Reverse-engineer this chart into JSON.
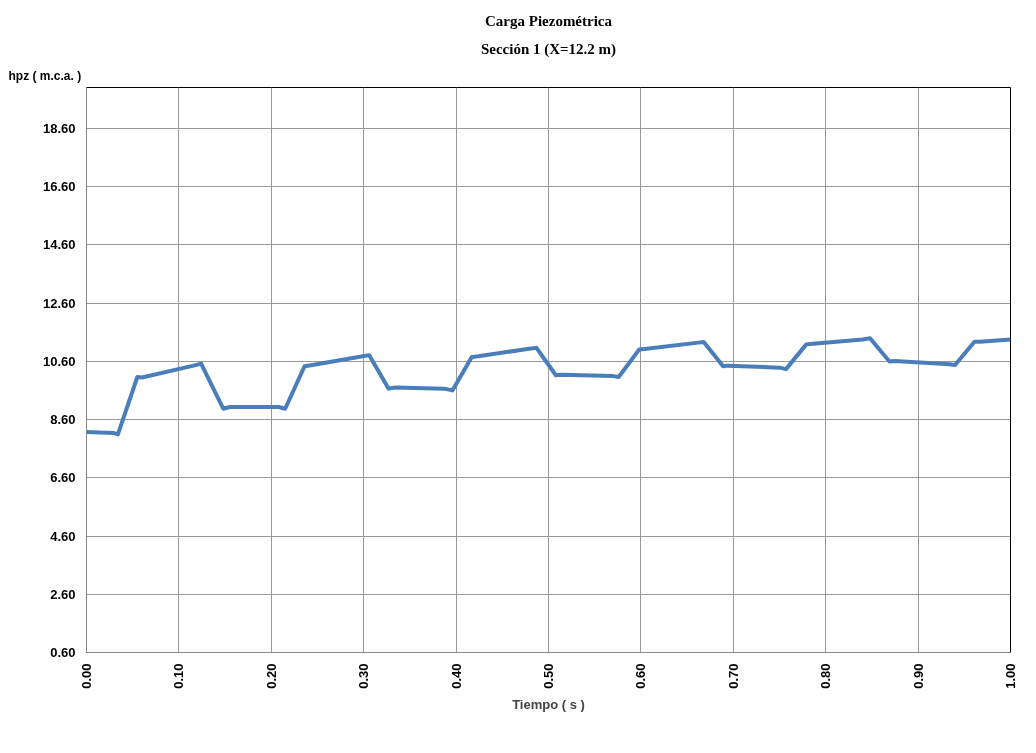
{
  "chart_data": {
    "type": "line",
    "title": "Carga Piezométrica",
    "subtitle": "Sección 1 (X=12.2 m)",
    "xlabel": "Tiempo ( s )",
    "ylabel": "hpz ( m.c.a. )",
    "x": [
      0,
      0.029,
      0.034,
      0.055,
      0.06,
      0.117,
      0.124,
      0.148,
      0.155,
      0.208,
      0.215,
      0.236,
      0.243,
      0.299,
      0.306,
      0.327,
      0.334,
      0.387,
      0.396,
      0.417,
      0.424,
      0.479,
      0.487,
      0.508,
      0.514,
      0.57,
      0.576,
      0.598,
      0.604,
      0.662,
      0.668,
      0.689,
      0.694,
      0.75,
      0.757,
      0.779,
      0.786,
      0.84,
      0.848,
      0.869,
      0.875,
      0.934,
      0.94,
      0.961,
      0.967,
      1.0
    ],
    "series": [
      {
        "color": "#4a7ebb",
        "values": [
          8.17,
          8.14,
          8.09,
          10.06,
          10.04,
          10.46,
          10.52,
          8.97,
          9.03,
          9.03,
          8.97,
          10.43,
          10.46,
          10.77,
          10.81,
          9.66,
          9.7,
          9.66,
          9.6,
          10.75,
          10.77,
          11.03,
          11.06,
          10.12,
          10.14,
          10.09,
          10.06,
          11.0,
          11.02,
          11.24,
          11.26,
          10.43,
          10.45,
          10.38,
          10.33,
          11.18,
          11.2,
          11.35,
          11.39,
          10.59,
          10.61,
          10.5,
          10.47,
          11.27,
          11.27,
          11.35
        ]
      }
    ],
    "xlim": [
      0,
      1.0
    ],
    "xticks": [
      {
        "value": 0,
        "label": "0.00"
      },
      {
        "value": 0.1,
        "label": "0.10"
      },
      {
        "value": 0.2,
        "label": "0.20"
      },
      {
        "value": 0.3,
        "label": "0.30"
      },
      {
        "value": 0.4,
        "label": "0.40"
      },
      {
        "value": 0.5,
        "label": "0.50"
      },
      {
        "value": 0.6,
        "label": "0.60"
      },
      {
        "value": 0.7,
        "label": "0.70"
      },
      {
        "value": 0.8,
        "label": "0.80"
      },
      {
        "value": 0.9,
        "label": "0.90"
      },
      {
        "value": 1.0,
        "label": "1.00"
      }
    ],
    "ylim": [
      0.6,
      20.0
    ],
    "yticks": [
      {
        "value": 0.6,
        "label": "0.60"
      },
      {
        "value": 2.6,
        "label": "2.60"
      },
      {
        "value": 4.6,
        "label": "4.60"
      },
      {
        "value": 6.6,
        "label": "6.60"
      },
      {
        "value": 8.6,
        "label": "8.60"
      },
      {
        "value": 10.6,
        "label": "10.60"
      },
      {
        "value": 12.6,
        "label": "12.60"
      },
      {
        "value": 14.6,
        "label": "14.60"
      },
      {
        "value": 16.6,
        "label": "16.60"
      },
      {
        "value": 18.6,
        "label": "18.60"
      }
    ],
    "grid": true,
    "marker": "none",
    "line_style": "solid"
  }
}
